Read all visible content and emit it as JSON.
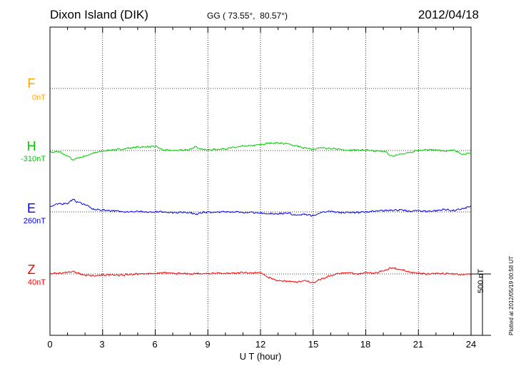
{
  "header": {
    "station": "Dixon Island (DIK)",
    "coords": "GG ( 73.55°,  80.57°)",
    "date": "2012/04/18"
  },
  "channels": [
    {
      "letter": "F",
      "base": "0nT",
      "color": "#ffa500"
    },
    {
      "letter": "H",
      "base": "-310nT",
      "color": "#00cc00"
    },
    {
      "letter": "E",
      "base": "260nT",
      "color": "#0000ff"
    },
    {
      "letter": "Z",
      "base": "40nT",
      "color": "#ff0000"
    }
  ],
  "xaxis": {
    "label": "U T (hour)",
    "ticks": [
      "0",
      "3",
      "6",
      "9",
      "12",
      "15",
      "18",
      "21",
      "24"
    ]
  },
  "scale_bar": {
    "label": "500 nT",
    "value_nT": 500
  },
  "footer": {
    "plotted": "Plotted at 2012/05/19 00:58 UT"
  },
  "chart_data": {
    "type": "line",
    "title": "Dixon Island (DIK)",
    "xlabel": "U T (hour)",
    "ylabel": "",
    "xlim": [
      0,
      24
    ],
    "x_ticks": [
      0,
      3,
      6,
      9,
      12,
      15,
      18,
      21,
      24
    ],
    "grid": true,
    "y_offset_units": "nT relative to channel baseline",
    "series": [
      {
        "name": "H",
        "baseline": "-310nT",
        "color": "#00cc00",
        "x": [
          0,
          0.5,
          1.0,
          1.3,
          1.6,
          2.0,
          2.5,
          3.0,
          3.5,
          4.0,
          4.5,
          5.0,
          5.5,
          6.0,
          6.5,
          7.0,
          7.5,
          8.0,
          8.3,
          8.6,
          9.0,
          9.5,
          10.0,
          10.5,
          11.0,
          11.5,
          12.0,
          12.5,
          13.0,
          13.5,
          14.0,
          14.5,
          15.0,
          15.5,
          16.0,
          16.5,
          17.0,
          17.5,
          18.0,
          18.5,
          19.0,
          19.5,
          20.0,
          20.5,
          21.0,
          21.5,
          22.0,
          22.5,
          23.0,
          23.5,
          24.0
        ],
        "y": [
          -15,
          -10,
          -45,
          -75,
          -60,
          -45,
          -20,
          -5,
          5,
          10,
          20,
          28,
          30,
          32,
          5,
          0,
          5,
          8,
          30,
          15,
          5,
          10,
          15,
          25,
          35,
          40,
          48,
          60,
          62,
          55,
          40,
          20,
          10,
          25,
          15,
          12,
          3,
          5,
          3,
          -5,
          -5,
          -45,
          -30,
          -15,
          3,
          5,
          5,
          -5,
          3,
          -30,
          -20
        ]
      },
      {
        "name": "E",
        "baseline": "260nT",
        "color": "#0000ff",
        "x": [
          0,
          0.5,
          1.0,
          1.3,
          1.6,
          2.0,
          2.5,
          3.0,
          3.5,
          4.0,
          4.5,
          5.0,
          5.5,
          6.0,
          6.5,
          7.0,
          7.5,
          8.0,
          8.3,
          8.6,
          9.0,
          9.5,
          10.0,
          10.5,
          11.0,
          11.5,
          12.0,
          12.5,
          13.0,
          13.5,
          14.0,
          14.5,
          15.0,
          15.5,
          16.0,
          16.5,
          17.0,
          17.5,
          18.0,
          18.5,
          19.0,
          19.5,
          20.0,
          20.5,
          21.0,
          21.5,
          22.0,
          22.5,
          23.0,
          23.5,
          24.0
        ],
        "y": [
          45,
          65,
          70,
          100,
          80,
          60,
          20,
          15,
          10,
          5,
          0,
          3,
          -3,
          0,
          0,
          -5,
          -3,
          -5,
          -20,
          -5,
          -3,
          -3,
          2,
          0,
          -3,
          -5,
          -10,
          -15,
          -15,
          -10,
          -25,
          -20,
          -30,
          -5,
          5,
          -5,
          -3,
          -5,
          0,
          5,
          10,
          15,
          15,
          5,
          10,
          5,
          10,
          20,
          10,
          25,
          45
        ]
      },
      {
        "name": "Z",
        "baseline": "40nT",
        "color": "#ff0000",
        "x": [
          0,
          0.5,
          1.0,
          1.3,
          1.6,
          2.0,
          2.5,
          3.0,
          3.5,
          4.0,
          4.5,
          5.0,
          5.5,
          6.0,
          6.5,
          7.0,
          7.5,
          8.0,
          8.3,
          8.6,
          9.0,
          9.5,
          10.0,
          10.5,
          11.0,
          11.5,
          12.0,
          12.5,
          13.0,
          13.5,
          14.0,
          14.5,
          15.0,
          15.5,
          16.0,
          16.5,
          17.0,
          17.5,
          18.0,
          18.5,
          19.0,
          19.5,
          20.0,
          20.5,
          21.0,
          21.5,
          22.0,
          22.5,
          23.0,
          23.5,
          24.0
        ],
        "y": [
          3,
          5,
          15,
          20,
          5,
          -10,
          -15,
          -10,
          -5,
          -10,
          -5,
          0,
          3,
          5,
          10,
          5,
          3,
          0,
          5,
          3,
          5,
          8,
          5,
          8,
          10,
          10,
          10,
          -30,
          -55,
          -60,
          -65,
          -55,
          -70,
          -40,
          -15,
          5,
          10,
          0,
          10,
          5,
          25,
          50,
          35,
          15,
          5,
          0,
          5,
          3,
          0,
          -5,
          0
        ]
      }
    ]
  }
}
